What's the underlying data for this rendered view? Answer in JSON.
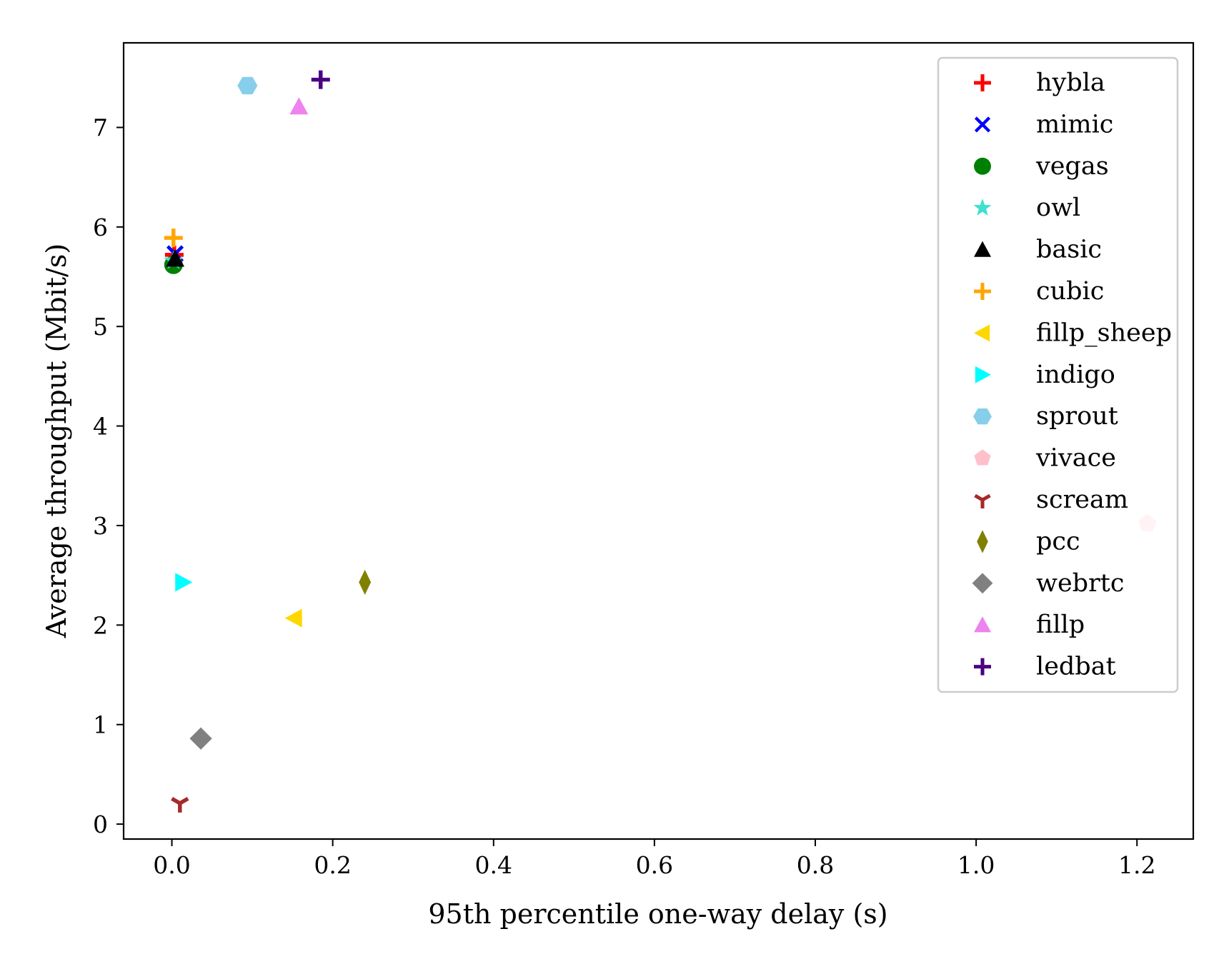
{
  "chart_data": {
    "type": "scatter",
    "title": "",
    "xlabel": "95th percentile one-way delay (s)",
    "ylabel": "Average throughput (Mbit/s)",
    "xlim": [
      -0.06,
      1.27
    ],
    "ylim": [
      -0.15,
      7.85
    ],
    "xticks": [
      0.0,
      0.2,
      0.4,
      0.6,
      0.8,
      1.0,
      1.2
    ],
    "xtick_labels": [
      "0.0",
      "0.2",
      "0.4",
      "0.6",
      "0.8",
      "1.0",
      "1.2"
    ],
    "yticks": [
      0,
      1,
      2,
      3,
      4,
      5,
      6,
      7
    ],
    "ytick_labels": [
      "0",
      "1",
      "2",
      "3",
      "4",
      "5",
      "6",
      "7"
    ],
    "grid": false,
    "legend_position": "top-right",
    "series": [
      {
        "name": "hybla",
        "marker": "plus",
        "color": "#ff0000",
        "x": 0.003,
        "y": 5.72
      },
      {
        "name": "mimic",
        "marker": "x",
        "color": "#0000ff",
        "x": 0.004,
        "y": 5.73
      },
      {
        "name": "vegas",
        "marker": "circle",
        "color": "#008000",
        "x": 0.002,
        "y": 5.62
      },
      {
        "name": "owl",
        "marker": "star",
        "color": "#40e0d0",
        "x": 0.002,
        "y": 5.66
      },
      {
        "name": "basic",
        "marker": "triangle-up",
        "color": "#000000",
        "x": 0.004,
        "y": 5.68
      },
      {
        "name": "cubic",
        "marker": "plus",
        "color": "#ffa500",
        "x": 0.002,
        "y": 5.89
      },
      {
        "name": "fillp_sheep",
        "marker": "triangle-left",
        "color": "#ffd700",
        "x": 0.152,
        "y": 2.07
      },
      {
        "name": "indigo",
        "marker": "triangle-right",
        "color": "#00ffff",
        "x": 0.014,
        "y": 2.43
      },
      {
        "name": "sprout",
        "marker": "hexagon",
        "color": "#87ceeb",
        "x": 0.094,
        "y": 7.42
      },
      {
        "name": "vivace",
        "marker": "pentagon",
        "color": "#ffc0cb",
        "x": 1.213,
        "y": 3.02
      },
      {
        "name": "scream",
        "marker": "tri-down",
        "color": "#a52a2a",
        "x": 0.01,
        "y": 0.21
      },
      {
        "name": "pcc",
        "marker": "thin-diamond",
        "color": "#808000",
        "x": 0.24,
        "y": 2.43
      },
      {
        "name": "webrtc",
        "marker": "diamond",
        "color": "#808080",
        "x": 0.036,
        "y": 0.86
      },
      {
        "name": "fillp",
        "marker": "triangle-up",
        "color": "#ee82ee",
        "x": 0.158,
        "y": 7.21
      },
      {
        "name": "ledbat",
        "marker": "plus",
        "color": "#4b0082",
        "x": 0.185,
        "y": 7.48
      }
    ]
  }
}
